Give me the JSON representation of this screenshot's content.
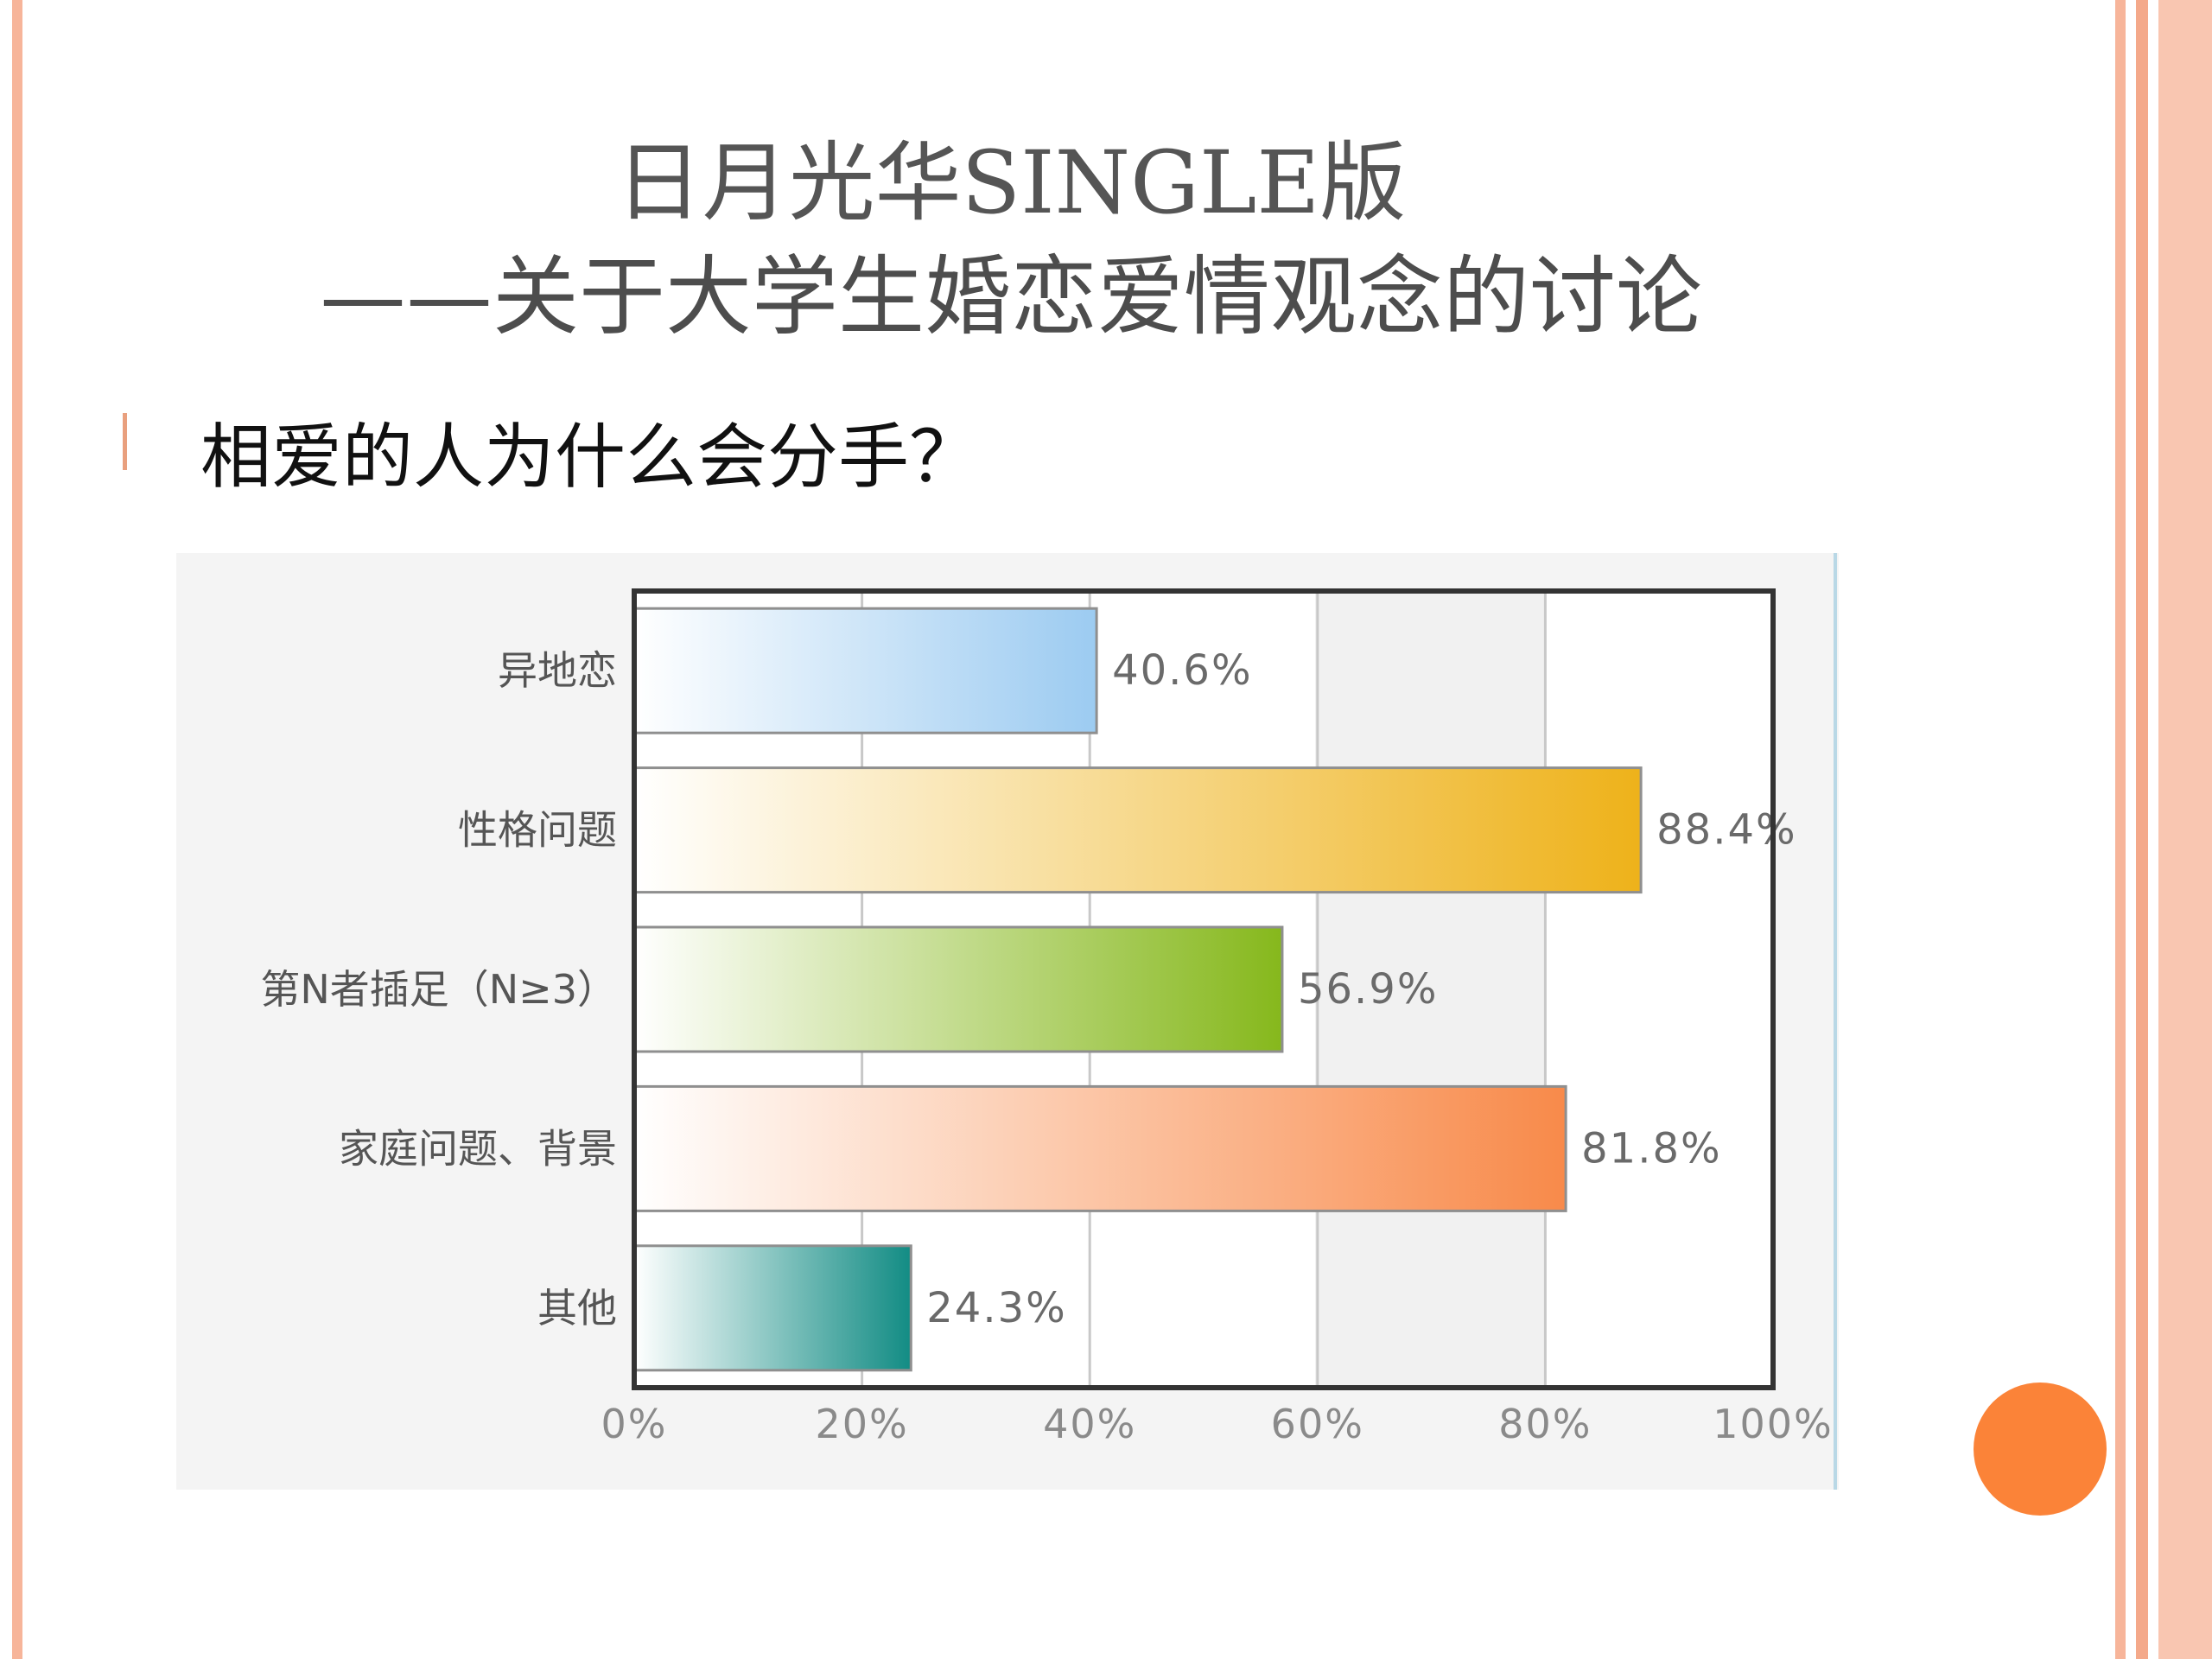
{
  "slide": {
    "title_line1": "日月光华SINGLE版",
    "title_line2": "——关于大学生婚恋爱情观念的讨论",
    "bullet": "相爱的人为什么会分手？"
  },
  "colors": {
    "frame_stripe": "#f7b59a",
    "accent_dot": "#fb8338"
  },
  "chart_data": {
    "type": "bar",
    "orientation": "horizontal",
    "categories": [
      "异地恋",
      "性格问题",
      "第N者插足（N≥3）",
      "家庭问题、背景",
      "其他"
    ],
    "values": [
      40.6,
      88.4,
      56.9,
      81.8,
      24.3
    ],
    "value_labels": [
      "40.6%",
      "88.4%",
      "56.9%",
      "81.8%",
      "24.3%"
    ],
    "bar_colors": [
      "#9ccbf1",
      "#eeb21a",
      "#86b81c",
      "#f88a4a",
      "#128c84"
    ],
    "xlim": [
      0,
      100
    ],
    "xticks": [
      0,
      20,
      40,
      60,
      80,
      100
    ],
    "xtick_labels": [
      "0%",
      "20%",
      "40%",
      "60%",
      "80%",
      "100%"
    ],
    "grid": true
  }
}
